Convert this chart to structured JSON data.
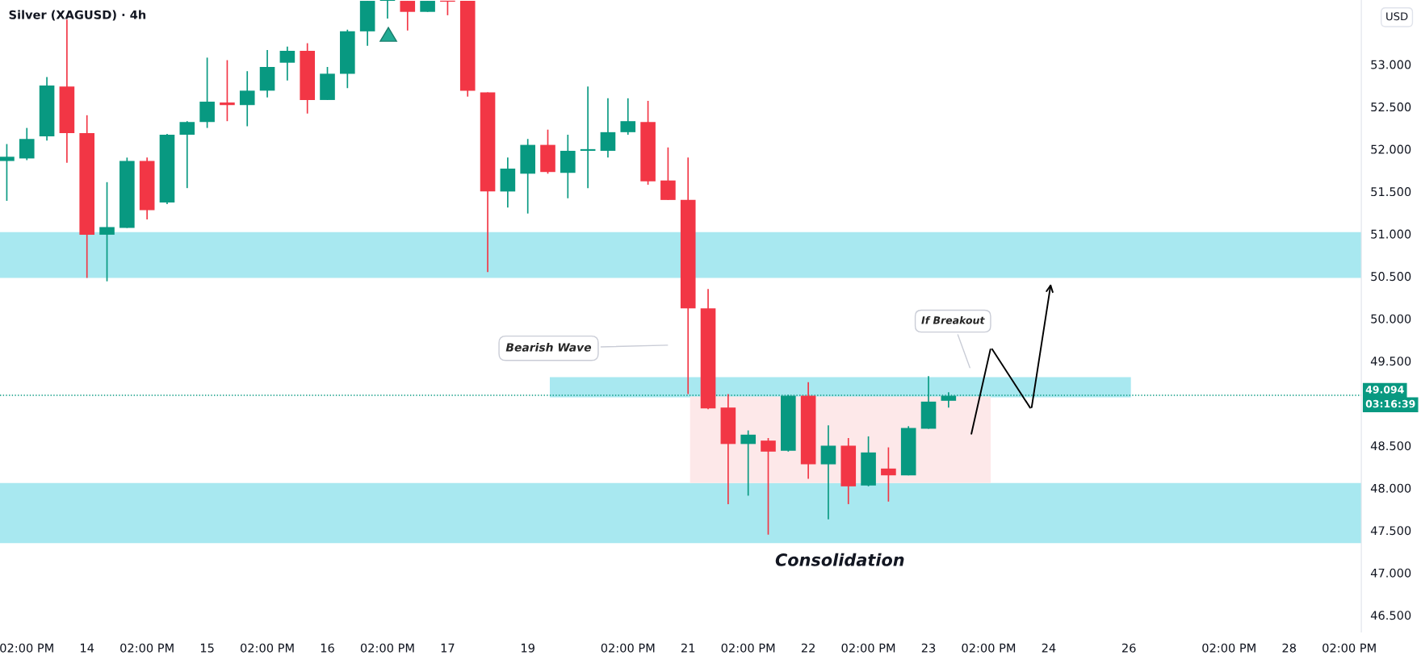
{
  "chart_data": {
    "type": "candlestick",
    "title": "Silver (XAGUSD) · 4h",
    "categories": [
      null,
      "02:00 PM",
      null,
      null,
      "14",
      null,
      null,
      "02:00 PM",
      null,
      null,
      "15",
      null,
      null,
      "02:00 PM",
      null,
      null,
      "16",
      null,
      null,
      "02:00 PM",
      null,
      null,
      "17",
      null,
      null,
      null,
      "19",
      null,
      null,
      null,
      null,
      "02:00 PM",
      null,
      null,
      "21",
      null,
      null,
      "02:00 PM",
      null,
      null,
      "22",
      null,
      null,
      "02:00 PM",
      null,
      null,
      "23",
      null,
      null,
      "02:00 PM",
      null,
      null,
      "24",
      null,
      null,
      null,
      "26",
      null,
      null,
      null,
      null,
      "02:00 PM",
      null,
      null,
      "28",
      null,
      null,
      "02:00 PM"
    ],
    "series": [
      {
        "colors": [
          "#089981",
          "#089981",
          "#089981",
          "#f23645",
          "#f23645",
          "#089981",
          "#089981",
          "#f23645",
          "#089981",
          "#089981",
          "#089981",
          "#f23645",
          "#089981",
          "#089981",
          "#089981",
          "#f23645",
          "#089981",
          "#089981",
          "#089981",
          "#089981",
          "#f23645",
          "#089981",
          "#f23645",
          "#f23645",
          "#f23645",
          "#089981",
          "#089981",
          "#f23645",
          "#089981",
          "#089981",
          "#089981",
          "#089981",
          "#f23645",
          "#f23645",
          "#f23645",
          "#f23645",
          "#f23645",
          "#089981",
          "#f23645",
          "#089981",
          "#f23645",
          "#089981",
          "#f23645",
          "#089981",
          "#f23645",
          "#089981",
          "#089981",
          "#089981",
          null,
          null,
          null,
          null,
          null,
          null,
          null,
          null,
          null,
          null,
          null,
          null,
          null,
          null,
          null,
          null,
          null,
          null,
          null,
          null
        ],
        "ohlc": [
          [
            51.86,
            52.06,
            51.39,
            51.91
          ],
          [
            51.89,
            52.25,
            51.87,
            52.12
          ],
          [
            52.15,
            52.85,
            52.1,
            52.75
          ],
          [
            52.74,
            53.53,
            51.84,
            52.19
          ],
          [
            52.19,
            52.4,
            50.48,
            50.99
          ],
          [
            50.99,
            51.61,
            50.44,
            51.08
          ],
          [
            51.07,
            51.9,
            51.07,
            51.86
          ],
          [
            51.86,
            51.9,
            51.17,
            51.28
          ],
          [
            51.37,
            52.18,
            51.35,
            52.17
          ],
          [
            52.17,
            52.33,
            51.54,
            52.32
          ],
          [
            52.32,
            53.08,
            52.25,
            52.56
          ],
          [
            52.55,
            53.05,
            52.33,
            52.52
          ],
          [
            52.52,
            52.92,
            52.27,
            52.69
          ],
          [
            52.69,
            53.17,
            52.61,
            52.97
          ],
          [
            53.02,
            53.21,
            52.81,
            53.16
          ],
          [
            53.16,
            53.25,
            52.42,
            52.58
          ],
          [
            52.58,
            52.97,
            52.58,
            52.89
          ],
          [
            52.89,
            53.41,
            52.72,
            53.39
          ],
          [
            53.39,
            53.75,
            53.22,
            53.75
          ],
          [
            53.75,
            53.75,
            53.54,
            53.75
          ],
          [
            53.75,
            53.75,
            53.4,
            53.62
          ],
          [
            53.62,
            53.75,
            53.62,
            53.75
          ],
          [
            53.75,
            53.75,
            53.58,
            53.74
          ],
          [
            53.75,
            53.75,
            52.62,
            52.69
          ],
          [
            52.67,
            52.67,
            50.55,
            51.5
          ],
          [
            51.5,
            51.9,
            51.31,
            51.77
          ],
          [
            51.71,
            52.12,
            51.24,
            52.05
          ],
          [
            52.05,
            52.23,
            51.71,
            51.73
          ],
          [
            51.72,
            52.17,
            51.42,
            51.98
          ],
          [
            51.98,
            52.74,
            51.54,
            52.0
          ],
          [
            51.98,
            52.6,
            51.9,
            52.2
          ],
          [
            52.2,
            52.6,
            52.17,
            52.33
          ],
          [
            52.32,
            52.57,
            51.58,
            51.62
          ],
          [
            51.63,
            52.02,
            51.4,
            51.4
          ],
          [
            51.4,
            51.9,
            49.11,
            50.12
          ],
          [
            50.12,
            50.35,
            48.93,
            48.94
          ],
          [
            48.95,
            49.11,
            47.81,
            48.52
          ],
          [
            48.52,
            48.68,
            47.91,
            48.63
          ],
          [
            48.56,
            48.59,
            47.45,
            48.43
          ],
          [
            48.44,
            49.1,
            48.43,
            49.09
          ],
          [
            49.09,
            49.25,
            48.11,
            48.28
          ],
          [
            48.28,
            48.74,
            47.63,
            48.5
          ],
          [
            48.5,
            48.59,
            47.81,
            48.02
          ],
          [
            48.03,
            48.61,
            48.02,
            48.42
          ],
          [
            48.23,
            48.48,
            47.84,
            48.15
          ],
          [
            48.15,
            48.73,
            48.15,
            48.71
          ],
          [
            48.7,
            49.32,
            48.7,
            49.02
          ],
          [
            49.03,
            49.13,
            48.95,
            49.09
          ],
          null,
          null,
          null,
          null,
          null,
          null,
          null,
          null,
          null,
          null,
          null,
          null,
          null,
          null,
          null,
          null,
          null,
          null,
          null,
          null
        ]
      }
    ],
    "ylim": [
      46.3,
      53.76
    ],
    "yticks": [
      {
        "value": 46.5,
        "label": "46.500"
      },
      {
        "value": 47,
        "label": "47.000"
      },
      {
        "value": 47.5,
        "label": "47.500"
      },
      {
        "value": 48,
        "label": "48.000"
      },
      {
        "value": 48.5,
        "label": "48.500"
      },
      {
        "value": 49.5,
        "label": "49.500"
      },
      {
        "value": 50,
        "label": "50.000"
      },
      {
        "value": 50.5,
        "label": "50.500"
      },
      {
        "value": 51,
        "label": "51.000"
      },
      {
        "value": 51.5,
        "label": "51.500"
      },
      {
        "value": 52,
        "label": "52.000"
      },
      {
        "value": 52.5,
        "label": "52.500"
      },
      {
        "value": 53,
        "label": "53.000"
      }
    ],
    "ylabel": "USD",
    "grid": false,
    "legend": false,
    "bands": [
      {
        "axis": "y",
        "from": 50.48,
        "to": 51.02,
        "color": "#a8e8f0"
      },
      {
        "axis": "y",
        "from": 47.35,
        "to": 48.06,
        "color": "#a8e8f0"
      },
      {
        "axis": "y",
        "from": 49.07,
        "to": 49.31,
        "color": "#a8e8f0"
      },
      {
        "axis": "y",
        "from": 48.06,
        "to": 49.08,
        "color": "#fde8e9"
      }
    ],
    "ref_lines": [
      {
        "axis": "y",
        "value": 49.094,
        "label": "49.094",
        "color": "#089981",
        "line_style": "dotted"
      }
    ],
    "annotations": [
      "03:16:39",
      "Bearish Wave",
      "If Breakout",
      "Consolidation"
    ]
  }
}
